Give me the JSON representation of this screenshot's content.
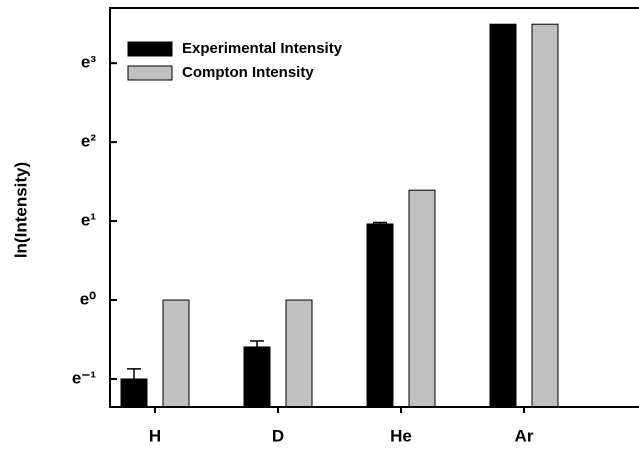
{
  "chart_data": {
    "type": "bar",
    "y_label": "ln(Intensity)",
    "categories": [
      "H",
      "D",
      "He",
      "Ar"
    ],
    "series": [
      {
        "name": "Experimental Intensity",
        "color": "#000000",
        "values": [
          0.368,
          0.552,
          2.62,
          32.9
        ],
        "errors": [
          0.05,
          0.043,
          0.05,
          null
        ]
      },
      {
        "name": "Compton Intensity",
        "color": "#c0c0c0",
        "values": [
          1.0,
          1.0,
          4.02,
          32.9
        ],
        "errors": [
          null,
          null,
          null,
          null
        ]
      }
    ],
    "log_scale": true,
    "log_base": 2.718281828,
    "ylim": [
      0.258,
      40.4
    ],
    "yticks": [
      {
        "value": 0.3679,
        "label": "e⁻¹"
      },
      {
        "value": 1,
        "label": "e⁰"
      },
      {
        "value": 2.7183,
        "label": "e¹"
      },
      {
        "value": 7.389,
        "label": "e²"
      },
      {
        "value": 20.086,
        "label": "e³"
      }
    ],
    "legend": "upper-left",
    "grid": false
  }
}
